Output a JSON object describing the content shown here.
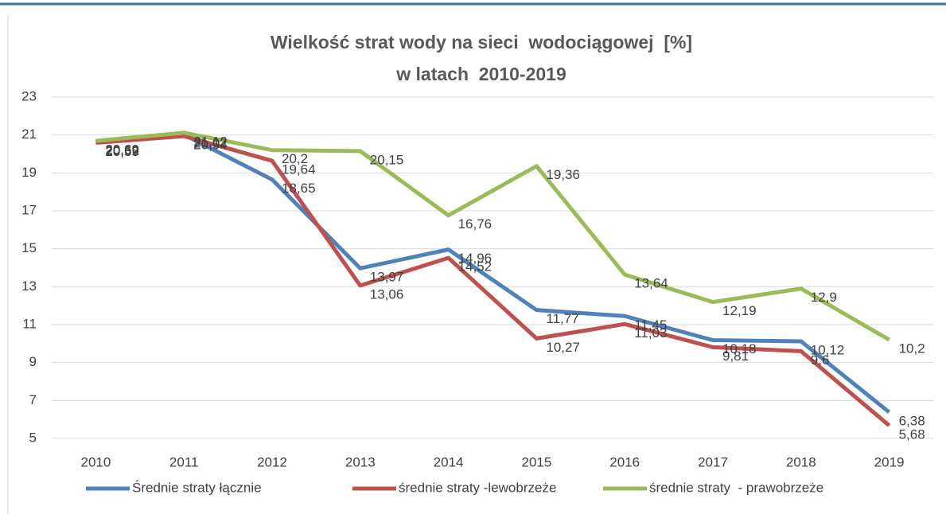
{
  "chart_data": {
    "type": "line",
    "title": [
      "Wielkość strat wody na sieci  wodociągowej  [%]",
      "w latach  2010-2019"
    ],
    "categories": [
      "2010",
      "2011",
      "2012",
      "2013",
      "2014",
      "2015",
      "2016",
      "2017",
      "2018",
      "2019"
    ],
    "series": [
      {
        "name": "Średnie straty łącznie",
        "color": "#4f81bd",
        "values": [
          20.62,
          21.02,
          18.65,
          13.97,
          14.96,
          11.77,
          11.45,
          10.18,
          10.12,
          6.38
        ],
        "value_labels": [
          "20,62",
          "21,02",
          "18,65",
          "13,97",
          "14,96",
          "11,77",
          "11,45",
          "10,18",
          "10,12",
          "6,38"
        ]
      },
      {
        "name": "średnie straty -lewobrzeże",
        "color": "#c0504d",
        "values": [
          20.59,
          20.94,
          19.64,
          13.06,
          14.52,
          10.27,
          11.03,
          9.81,
          9.6,
          5.68
        ],
        "value_labels": [
          "20,59",
          "20,94",
          "19,64",
          "13,06",
          "14,52",
          "10,27",
          "11,03",
          "9,81",
          "9,6",
          "5,68"
        ]
      },
      {
        "name": "średnie straty  - prawobrzeże",
        "color": "#9bbb59",
        "values": [
          20.69,
          21.12,
          20.2,
          20.15,
          16.76,
          19.36,
          13.64,
          12.19,
          12.9,
          10.2
        ],
        "value_labels": [
          "20,69",
          "21,12",
          "20,2",
          "20,15",
          "16,76",
          "19,36",
          "13,64",
          "12,19",
          "12,9",
          "10,2"
        ]
      }
    ],
    "ylim": [
      5,
      23
    ],
    "yticks": [
      5,
      7,
      9,
      11,
      13,
      15,
      17,
      19,
      21,
      23
    ],
    "grid": true,
    "legend": "bottom"
  }
}
